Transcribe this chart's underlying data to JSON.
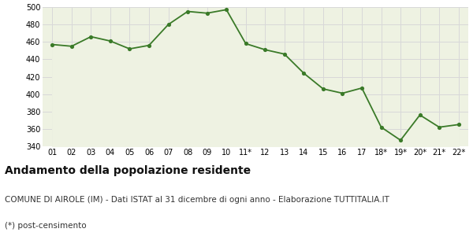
{
  "x_labels": [
    "01",
    "02",
    "03",
    "04",
    "05",
    "06",
    "07",
    "08",
    "09",
    "10",
    "11*",
    "12",
    "13",
    "14",
    "15",
    "16",
    "17",
    "18*",
    "19*",
    "20*",
    "21*",
    "22*"
  ],
  "y_values": [
    457,
    455,
    466,
    461,
    452,
    456,
    480,
    495,
    493,
    497,
    458,
    451,
    446,
    424,
    406,
    401,
    407,
    362,
    347,
    376,
    362,
    365
  ],
  "line_color": "#3a7a28",
  "fill_color": "#eef2e2",
  "marker_color": "#3a7a28",
  "background_color": "#ffffff",
  "plot_bg_color": "#eef2e2",
  "grid_color": "#d8d8d8",
  "ylim": [
    340,
    500
  ],
  "yticks": [
    340,
    360,
    380,
    400,
    420,
    440,
    460,
    480,
    500
  ],
  "title": "Andamento della popolazione residente",
  "subtitle": "COMUNE DI AIROLE (IM) - Dati ISTAT al 31 dicembre di ogni anno - Elaborazione TUTTITALIA.IT",
  "footnote": "(*) post-censimento",
  "title_fontsize": 10,
  "subtitle_fontsize": 7.5,
  "footnote_fontsize": 7.5,
  "tick_fontsize": 7
}
